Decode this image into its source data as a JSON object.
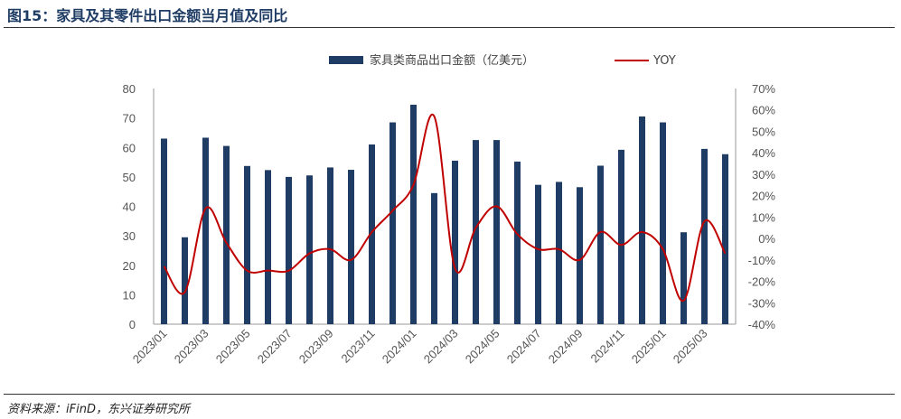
{
  "header": {
    "title": "图15：家具及其零件出口金额当月值及同比"
  },
  "footer": {
    "source": "资料来源：iFinD，东兴证券研究所"
  },
  "colors": {
    "bar": "#1f3d64",
    "line": "#c00000",
    "title": "#1f3d64"
  },
  "chart_data": {
    "type": "bar",
    "categories": [
      "2023/01",
      "2023/02",
      "2023/03",
      "2023/04",
      "2023/05",
      "2023/06",
      "2023/07",
      "2023/08",
      "2023/09",
      "2023/10",
      "2023/11",
      "2023/12",
      "2024/01",
      "2024/02",
      "2024/03",
      "2024/04",
      "2024/05",
      "2024/06",
      "2024/07",
      "2024/08",
      "2024/09",
      "2024/10",
      "2024/11",
      "2024/12",
      "2025/01",
      "2025/02",
      "2025/03",
      "2025/04"
    ],
    "x_tick_labels": [
      "2023/01",
      "2023/03",
      "2023/05",
      "2023/07",
      "2023/09",
      "2023/11",
      "2024/01",
      "2024/03",
      "2024/05",
      "2024/07",
      "2024/09",
      "2024/11",
      "2025/01",
      "2025/03"
    ],
    "series": [
      {
        "name": "家具类商品出口金额（亿美元）",
        "type": "bar",
        "axis": "left",
        "values": [
          63,
          29.5,
          63.3,
          60.5,
          53.7,
          52.3,
          50,
          50.5,
          53.2,
          52.4,
          61,
          68.5,
          74.5,
          44.5,
          55.5,
          62.5,
          62.5,
          55.2,
          47.3,
          48.3,
          46.5,
          53.8,
          59.2,
          70.5,
          68.5,
          31.2,
          59.5,
          57.7
        ]
      },
      {
        "name": "YOY",
        "type": "line",
        "axis": "right",
        "values": [
          -13,
          -25,
          14,
          -2,
          -15,
          -15,
          -15,
          -7,
          -5,
          -10,
          3,
          13,
          25,
          57,
          -14,
          5,
          15,
          2,
          -5,
          -5,
          -10,
          3,
          -3,
          3,
          -5,
          -29,
          8,
          -7
        ]
      }
    ],
    "y_left": {
      "min": 0,
      "max": 80,
      "ticks": [
        "0",
        "10",
        "20",
        "30",
        "40",
        "50",
        "60",
        "70",
        "80"
      ]
    },
    "y_right": {
      "min": -40,
      "max": 70,
      "ticks": [
        "-40%",
        "-30%",
        "-20%",
        "-10%",
        "0%",
        "10%",
        "20%",
        "30%",
        "40%",
        "50%",
        "60%",
        "70%"
      ]
    },
    "legend_position": "top-center",
    "grid": false
  }
}
